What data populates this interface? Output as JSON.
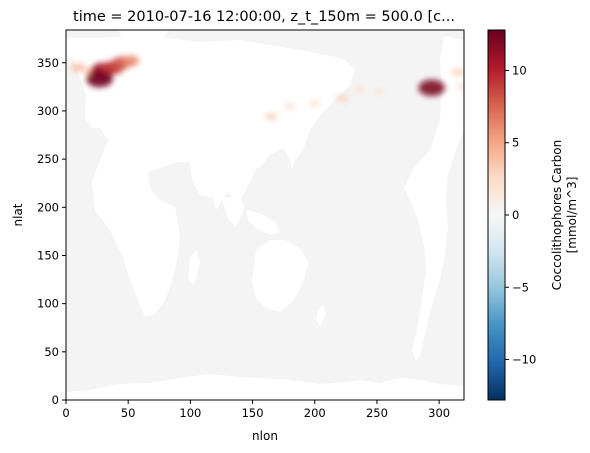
{
  "chart_data": {
    "type": "heatmap",
    "title": "time = 2010-07-16 12:00:00, z_t_150m = 500.0 [c...",
    "xlabel": "nlon",
    "ylabel": "nlat",
    "xlim": [
      0,
      320
    ],
    "ylim": [
      0,
      384
    ],
    "xticks": [
      0,
      50,
      100,
      150,
      200,
      250,
      300
    ],
    "yticks": [
      0,
      50,
      100,
      150,
      200,
      250,
      300,
      350
    ],
    "colorbar": {
      "label_lines": [
        "Coccolithophores Carbon",
        "[mmol/m^3]"
      ],
      "vmin": -12.8,
      "vmax": 12.8,
      "ticks": [
        -10,
        -5,
        0,
        5,
        10
      ],
      "tick_labels": [
        "−10",
        "−5",
        "0",
        "5",
        "10"
      ],
      "colormap": "RdBu_r"
    },
    "colors": {
      "ocean_zero": "#f4f4f4",
      "land_nan": "#ffffff"
    },
    "hotspots": [
      {
        "x": 10,
        "y": 345,
        "value": 4
      },
      {
        "x": 22,
        "y": 340,
        "value": 5
      },
      {
        "x": 30,
        "y": 342,
        "value": 11
      },
      {
        "x": 38,
        "y": 345,
        "value": 9
      },
      {
        "x": 45,
        "y": 350,
        "value": 8
      },
      {
        "x": 52,
        "y": 352,
        "value": 6
      },
      {
        "x": 27,
        "y": 333,
        "value": 12.5
      },
      {
        "x": 165,
        "y": 294,
        "value": 3
      },
      {
        "x": 180,
        "y": 305,
        "value": 2
      },
      {
        "x": 200,
        "y": 308,
        "value": 2
      },
      {
        "x": 222,
        "y": 313,
        "value": 3
      },
      {
        "x": 236,
        "y": 322,
        "value": 2
      },
      {
        "x": 252,
        "y": 320,
        "value": 2
      },
      {
        "x": 294,
        "y": 324,
        "value": 12
      },
      {
        "x": 315,
        "y": 340,
        "value": 3
      },
      {
        "x": 318,
        "y": 325,
        "value": 2
      }
    ]
  }
}
